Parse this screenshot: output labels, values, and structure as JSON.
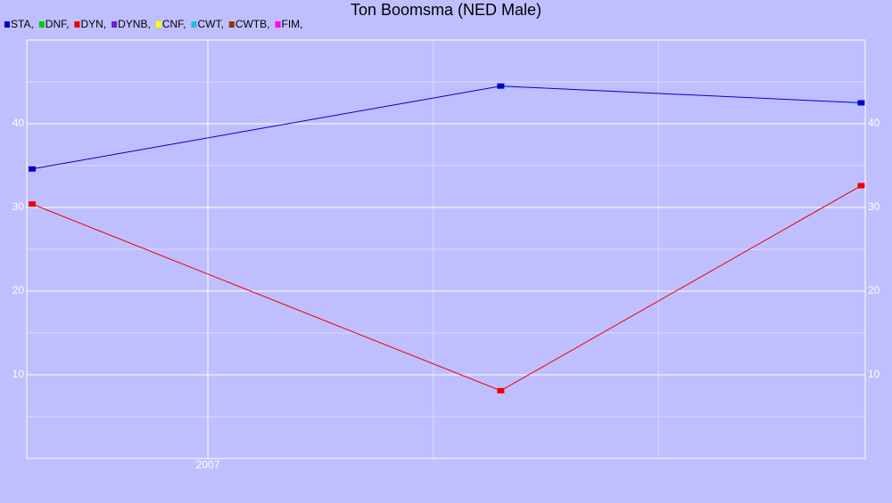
{
  "chart_data": {
    "type": "line",
    "title": "Ton Boomsma (NED Male)",
    "x": [
      2006.61,
      2007.65,
      2008.45
    ],
    "xlim": [
      2006.598,
      2008.459
    ],
    "xticks": [
      {
        "value": 2007,
        "label": "2007"
      }
    ],
    "x_gridlines": [
      2007.5,
      2008
    ],
    "ylim": [
      0,
      50
    ],
    "yticks": [
      10,
      20,
      30,
      40
    ],
    "minor_yticks": [
      5,
      15,
      25,
      35,
      45
    ],
    "grid": true,
    "right_axis": true,
    "series": [
      {
        "name": "STA,",
        "color": "#0000cc",
        "values": [
          34.6,
          44.5,
          42.5
        ]
      },
      {
        "name": "DNF,",
        "color": "#00cc00",
        "values": [
          null,
          null,
          null
        ]
      },
      {
        "name": "DYN,",
        "color": "#ee0000",
        "values": [
          30.4,
          8.1,
          32.6
        ]
      },
      {
        "name": "DYNB,",
        "color": "#6a1ae0",
        "values": [
          null,
          null,
          null
        ]
      },
      {
        "name": "CNF,",
        "color": "#ffff00",
        "values": [
          null,
          null,
          null
        ]
      },
      {
        "name": "CWT,",
        "color": "#22bbdd",
        "values": [
          null,
          null,
          null
        ]
      },
      {
        "name": "CWTB,",
        "color": "#993300",
        "values": [
          null,
          null,
          null
        ]
      },
      {
        "name": "FIM,",
        "color": "#ff00ff",
        "values": [
          null,
          null,
          null
        ]
      }
    ]
  }
}
